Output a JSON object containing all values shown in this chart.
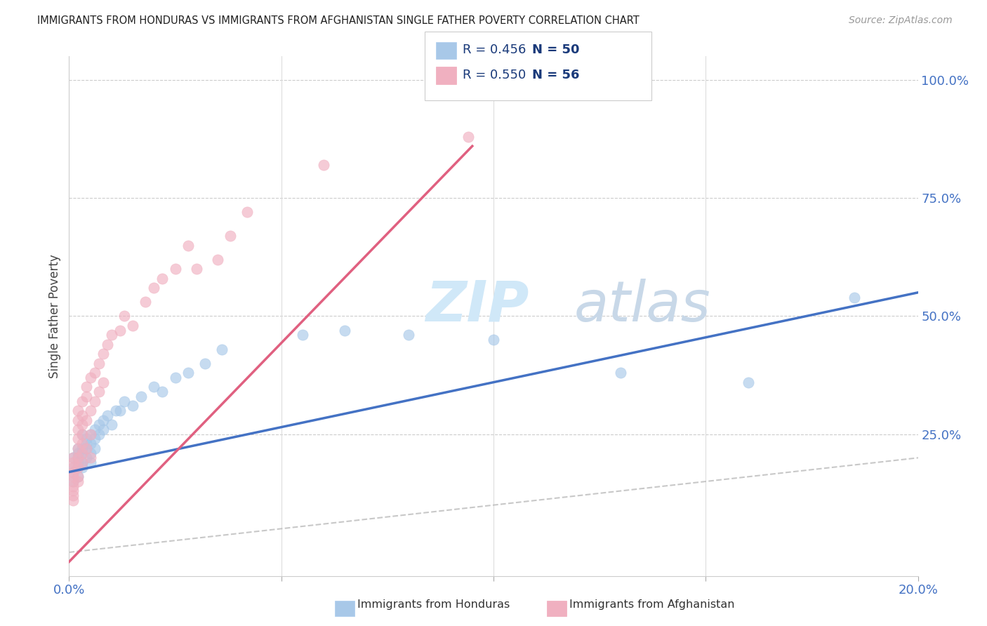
{
  "title": "IMMIGRANTS FROM HONDURAS VS IMMIGRANTS FROM AFGHANISTAN SINGLE FATHER POVERTY CORRELATION CHART",
  "source": "Source: ZipAtlas.com",
  "ylabel": "Single Father Poverty",
  "legend1_R": "0.456",
  "legend1_N": "50",
  "legend2_R": "0.550",
  "legend2_N": "56",
  "blue_color": "#A8C8E8",
  "pink_color": "#F0B0C0",
  "blue_line_color": "#4472C4",
  "pink_line_color": "#E06080",
  "watermark_zip": "ZIP",
  "watermark_atlas": "atlas",
  "xlim": [
    0.0,
    0.2
  ],
  "ylim": [
    -0.05,
    1.05
  ],
  "blue_line_x0": 0.0,
  "blue_line_y0": 0.17,
  "blue_line_x1": 0.2,
  "blue_line_y1": 0.55,
  "pink_line_x0": 0.0,
  "pink_line_y0": -0.02,
  "pink_line_x1": 0.095,
  "pink_line_y1": 0.86,
  "honduras_x": [
    0.001,
    0.001,
    0.001,
    0.001,
    0.002,
    0.002,
    0.002,
    0.002,
    0.002,
    0.002,
    0.003,
    0.003,
    0.003,
    0.003,
    0.003,
    0.004,
    0.004,
    0.004,
    0.004,
    0.005,
    0.005,
    0.005,
    0.005,
    0.006,
    0.006,
    0.006,
    0.007,
    0.007,
    0.008,
    0.008,
    0.009,
    0.01,
    0.011,
    0.012,
    0.013,
    0.015,
    0.017,
    0.02,
    0.022,
    0.025,
    0.028,
    0.032,
    0.036,
    0.055,
    0.065,
    0.08,
    0.1,
    0.13,
    0.16,
    0.185
  ],
  "honduras_y": [
    0.18,
    0.2,
    0.17,
    0.15,
    0.19,
    0.21,
    0.18,
    0.22,
    0.16,
    0.2,
    0.22,
    0.19,
    0.25,
    0.18,
    0.21,
    0.23,
    0.2,
    0.24,
    0.22,
    0.21,
    0.23,
    0.25,
    0.19,
    0.26,
    0.24,
    0.22,
    0.27,
    0.25,
    0.28,
    0.26,
    0.29,
    0.27,
    0.3,
    0.3,
    0.32,
    0.31,
    0.33,
    0.35,
    0.34,
    0.37,
    0.38,
    0.4,
    0.43,
    0.46,
    0.47,
    0.46,
    0.45,
    0.38,
    0.36,
    0.54
  ],
  "afghanistan_x": [
    0.001,
    0.001,
    0.001,
    0.001,
    0.001,
    0.001,
    0.001,
    0.001,
    0.001,
    0.001,
    0.002,
    0.002,
    0.002,
    0.002,
    0.002,
    0.002,
    0.002,
    0.002,
    0.002,
    0.003,
    0.003,
    0.003,
    0.003,
    0.003,
    0.003,
    0.003,
    0.004,
    0.004,
    0.004,
    0.004,
    0.005,
    0.005,
    0.005,
    0.005,
    0.006,
    0.006,
    0.007,
    0.007,
    0.008,
    0.008,
    0.009,
    0.01,
    0.012,
    0.013,
    0.015,
    0.018,
    0.02,
    0.022,
    0.025,
    0.028,
    0.03,
    0.035,
    0.038,
    0.042,
    0.06,
    0.094
  ],
  "afghanistan_y": [
    0.14,
    0.16,
    0.18,
    0.2,
    0.17,
    0.13,
    0.15,
    0.19,
    0.12,
    0.11,
    0.22,
    0.24,
    0.2,
    0.26,
    0.18,
    0.28,
    0.15,
    0.3,
    0.16,
    0.25,
    0.27,
    0.23,
    0.32,
    0.29,
    0.21,
    0.19,
    0.33,
    0.28,
    0.35,
    0.22,
    0.37,
    0.3,
    0.25,
    0.2,
    0.38,
    0.32,
    0.4,
    0.34,
    0.42,
    0.36,
    0.44,
    0.46,
    0.47,
    0.5,
    0.48,
    0.53,
    0.56,
    0.58,
    0.6,
    0.65,
    0.6,
    0.62,
    0.67,
    0.72,
    0.82,
    0.88
  ]
}
